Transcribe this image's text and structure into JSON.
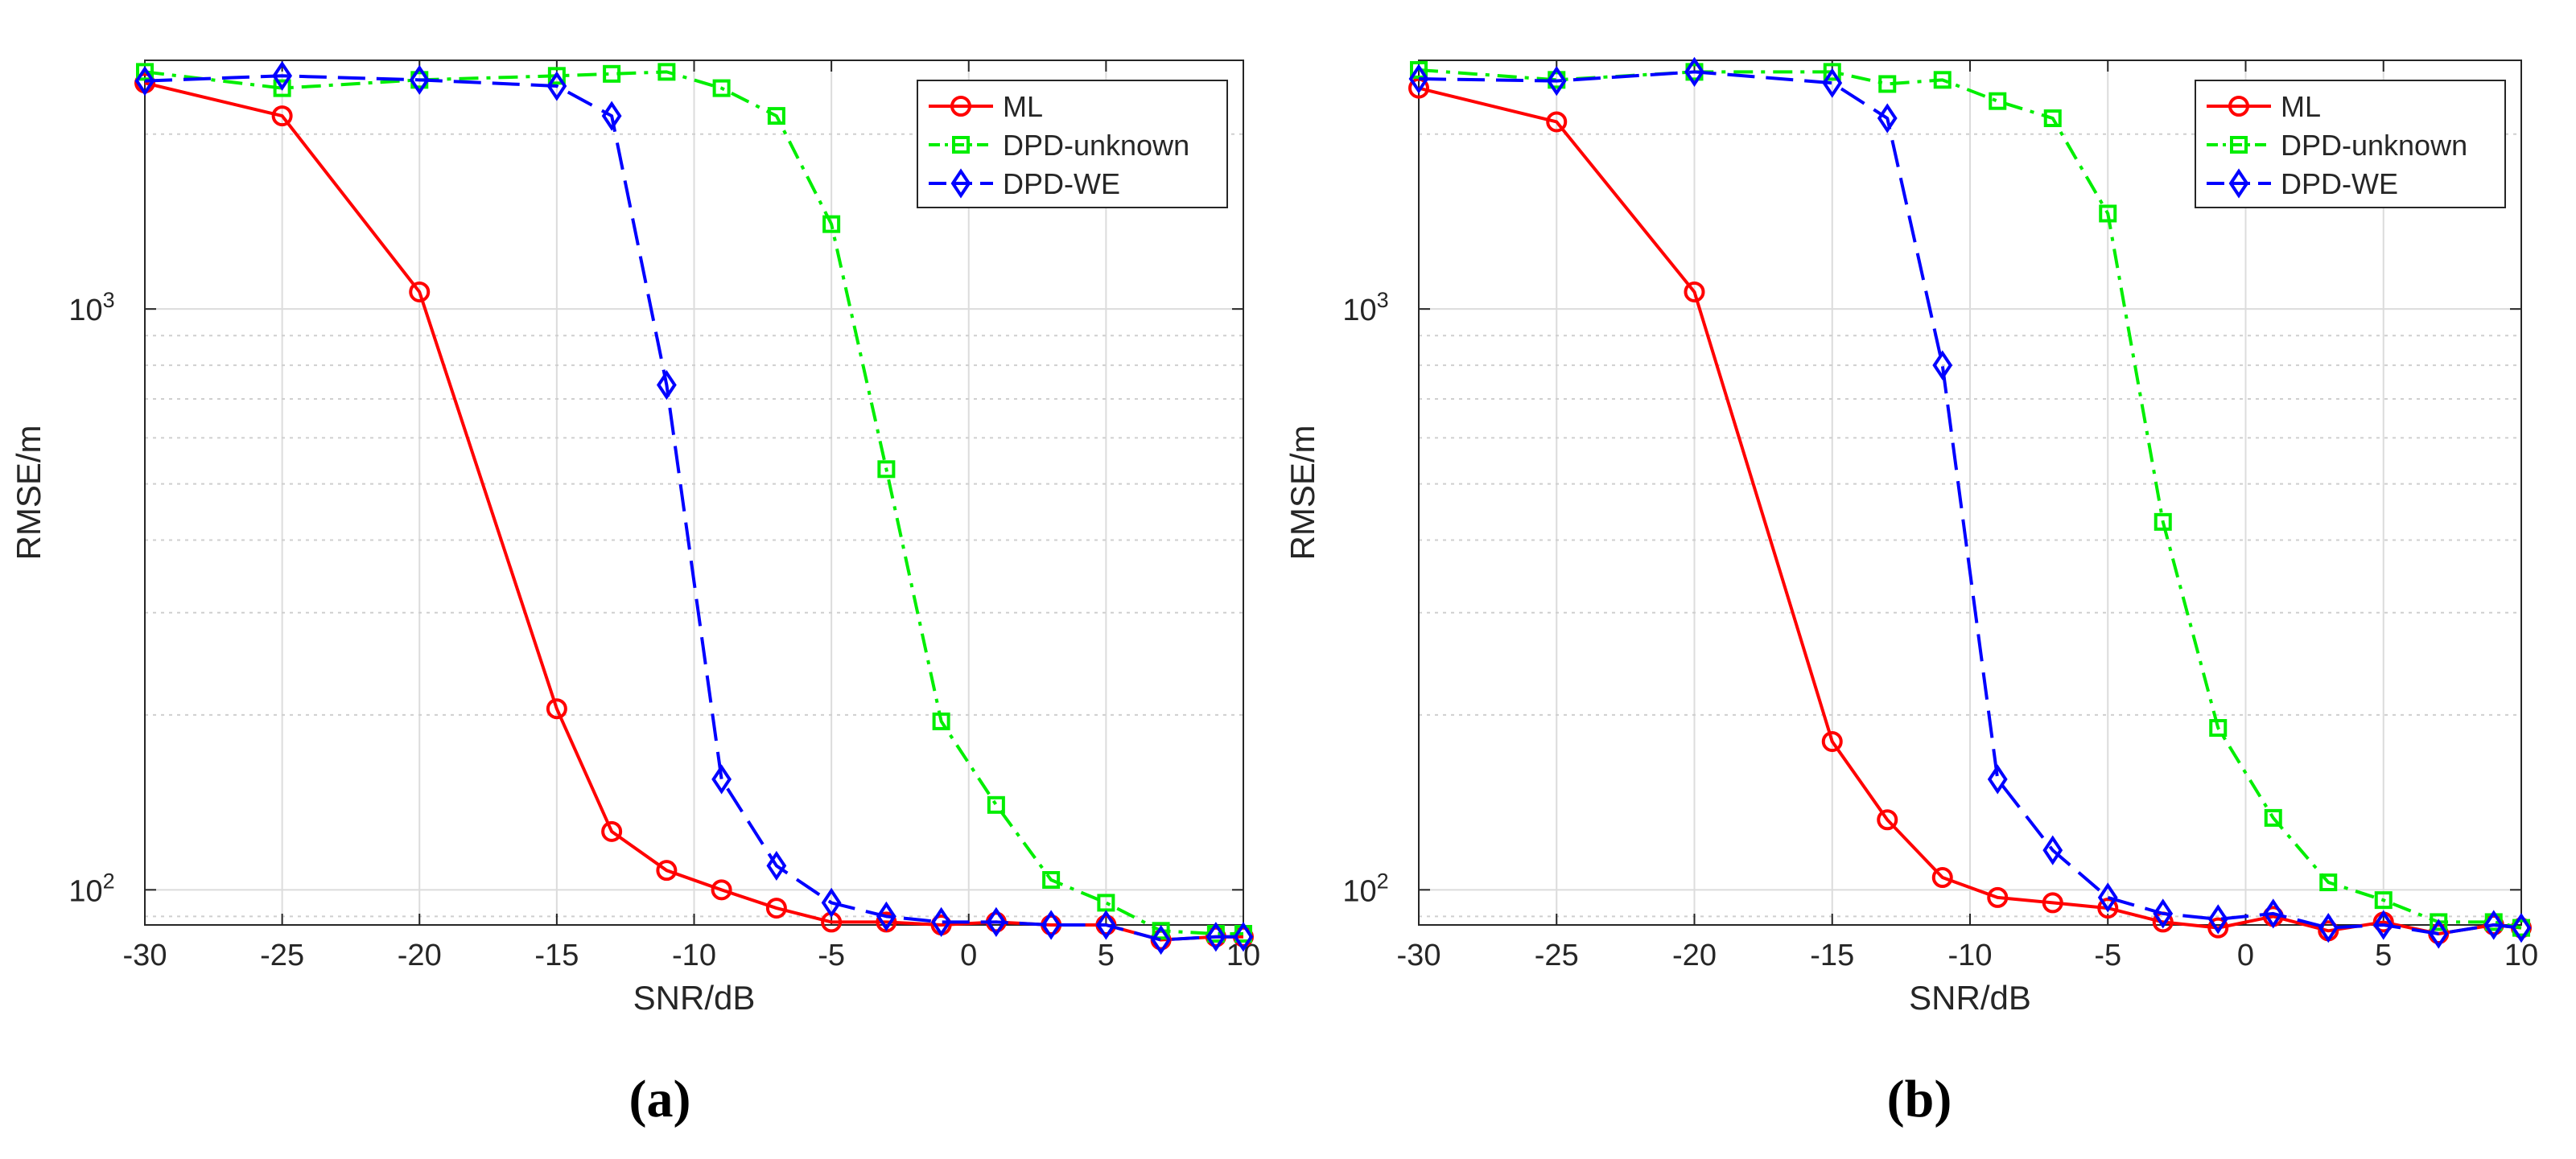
{
  "chart_data": [
    {
      "type": "line",
      "panel_label": "(a)",
      "xlabel": "SNR/dB",
      "ylabel": "RMSE/m",
      "yscale": "log",
      "xlim": [
        -30,
        10
      ],
      "ylim": [
        87,
        2680
      ],
      "xticks": [
        -30,
        -25,
        -20,
        -15,
        -10,
        -5,
        0,
        5,
        10
      ],
      "xtick_labels": [
        "-30",
        "-25",
        "-20",
        "-15",
        "-10",
        "-5",
        "0",
        "5",
        "10"
      ],
      "yticks": [
        100,
        1000
      ],
      "ytick_labels": [
        {
          "base": "10",
          "exp": "2"
        },
        {
          "base": "10",
          "exp": "3"
        }
      ],
      "grid": true,
      "legend_position": "top-right",
      "series": [
        {
          "name": "ML",
          "color": "#ff0000",
          "marker": "circle",
          "dash": "solid",
          "x": [
            -30,
            -25,
            -20,
            -15,
            -13,
            -11,
            -9,
            -7,
            -5,
            -3,
            -1,
            1,
            3,
            5,
            7,
            9,
            10
          ],
          "y": [
            2450,
            2150,
            1070,
            205,
            126,
            108,
            100,
            93,
            88,
            88,
            87,
            88,
            87,
            87,
            82,
            83,
            83
          ]
        },
        {
          "name": "DPD-unknown",
          "color": "#00ee00",
          "marker": "square",
          "dash": "dashdot",
          "x": [
            -30,
            -25,
            -20,
            -15,
            -13,
            -11,
            -9,
            -7,
            -5,
            -3,
            -1,
            1,
            3,
            5,
            7,
            9,
            10
          ],
          "y": [
            2560,
            2400,
            2480,
            2520,
            2540,
            2560,
            2400,
            2150,
            1400,
            530,
            195,
            140,
            104,
            95,
            85,
            84,
            84
          ]
        },
        {
          "name": "DPD-WE",
          "color": "#0000ff",
          "marker": "diamond",
          "dash": "dashed",
          "x": [
            -30,
            -25,
            -20,
            -15,
            -13,
            -11,
            -9,
            -7,
            -5,
            -3,
            -1,
            1,
            3,
            5,
            7,
            9,
            10
          ],
          "y": [
            2470,
            2520,
            2480,
            2420,
            2150,
            740,
            155,
            110,
            95,
            90,
            88,
            88,
            87,
            87,
            82,
            83,
            83
          ]
        }
      ]
    },
    {
      "type": "line",
      "panel_label": "(b)",
      "xlabel": "SNR/dB",
      "ylabel": "RMSE/m",
      "yscale": "log",
      "xlim": [
        -30,
        10
      ],
      "ylim": [
        87,
        2680
      ],
      "xticks": [
        -30,
        -25,
        -20,
        -15,
        -10,
        -5,
        0,
        5,
        10
      ],
      "xtick_labels": [
        "-30",
        "-25",
        "-20",
        "-15",
        "-10",
        "-5",
        "0",
        "5",
        "10"
      ],
      "yticks": [
        100,
        1000
      ],
      "ytick_labels": [
        {
          "base": "10",
          "exp": "2"
        },
        {
          "base": "10",
          "exp": "3"
        }
      ],
      "grid": true,
      "legend_position": "top-right",
      "series": [
        {
          "name": "ML",
          "color": "#ff0000",
          "marker": "circle",
          "dash": "solid",
          "x": [
            -30,
            -25,
            -20,
            -15,
            -13,
            -11,
            -9,
            -7,
            -5,
            -3,
            -1,
            1,
            3,
            5,
            7,
            9,
            10
          ],
          "y": [
            2400,
            2100,
            1070,
            180,
            132,
            105,
            97,
            95,
            93,
            88,
            86,
            90,
            85,
            88,
            84,
            87,
            86
          ]
        },
        {
          "name": "DPD-unknown",
          "color": "#00ee00",
          "marker": "square",
          "dash": "dashdot",
          "x": [
            -30,
            -25,
            -20,
            -15,
            -13,
            -11,
            -9,
            -7,
            -5,
            -3,
            -1,
            1,
            3,
            5,
            7,
            9,
            10
          ],
          "y": [
            2580,
            2480,
            2560,
            2560,
            2440,
            2480,
            2280,
            2130,
            1460,
            430,
            190,
            133,
            103,
            96,
            88,
            88,
            86
          ]
        },
        {
          "name": "DPD-WE",
          "color": "#0000ff",
          "marker": "diamond",
          "dash": "dashed",
          "x": [
            -30,
            -25,
            -20,
            -15,
            -13,
            -11,
            -9,
            -7,
            -5,
            -3,
            -1,
            1,
            3,
            5,
            7,
            9,
            10
          ],
          "y": [
            2490,
            2470,
            2560,
            2450,
            2130,
            800,
            155,
            117,
            97,
            91,
            89,
            91,
            86,
            87,
            84,
            87,
            86
          ]
        }
      ]
    }
  ]
}
